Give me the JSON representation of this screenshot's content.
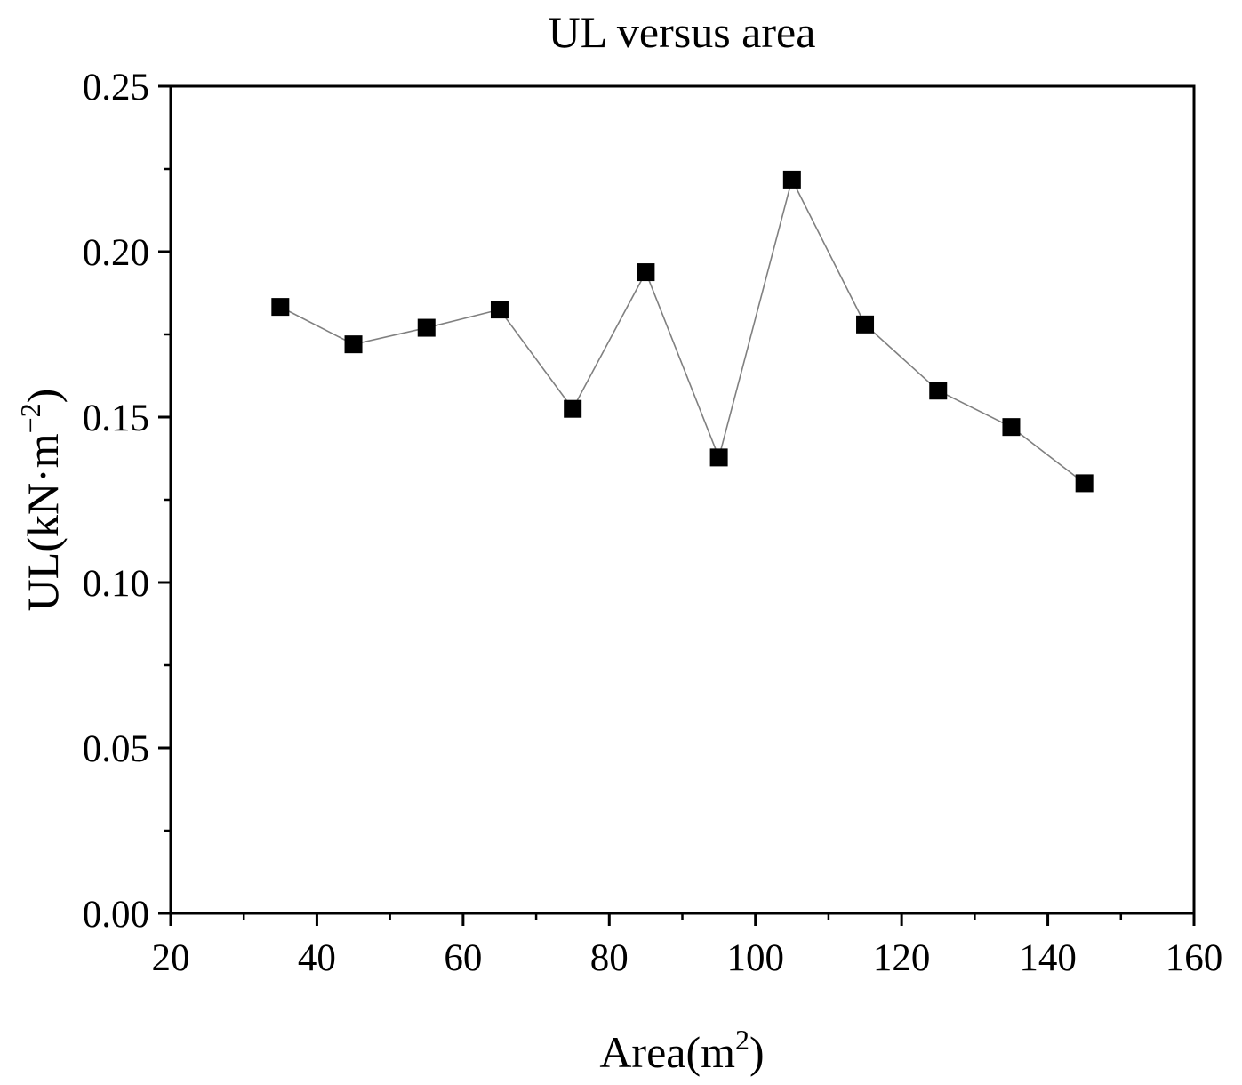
{
  "chart_data": {
    "type": "line",
    "title": "UL versus area",
    "xlabel": {
      "main": "Area(m",
      "sup": "2",
      "close": ")"
    },
    "ylabel": {
      "main": "UL(kN·m",
      "sup": "−2",
      "close": ")"
    },
    "xlim": [
      20,
      160
    ],
    "ylim": [
      0,
      0.25
    ],
    "xticks": [
      "20",
      "40",
      "60",
      "80",
      "100",
      "120",
      "140",
      "160"
    ],
    "yticks": [
      "0.00",
      "0.05",
      "0.10",
      "0.15",
      "0.20",
      "0.25"
    ],
    "grid": false,
    "marker": "square",
    "line_color": "#808080",
    "marker_color": "#000000",
    "series": [
      {
        "x": [
          35,
          45,
          55,
          65,
          75,
          85,
          95,
          105,
          115,
          125,
          135,
          145
        ],
        "y": [
          0.1833,
          0.172,
          0.177,
          0.1825,
          0.1525,
          0.1938,
          0.1378,
          0.2218,
          0.178,
          0.158,
          0.147,
          0.13
        ]
      }
    ]
  }
}
